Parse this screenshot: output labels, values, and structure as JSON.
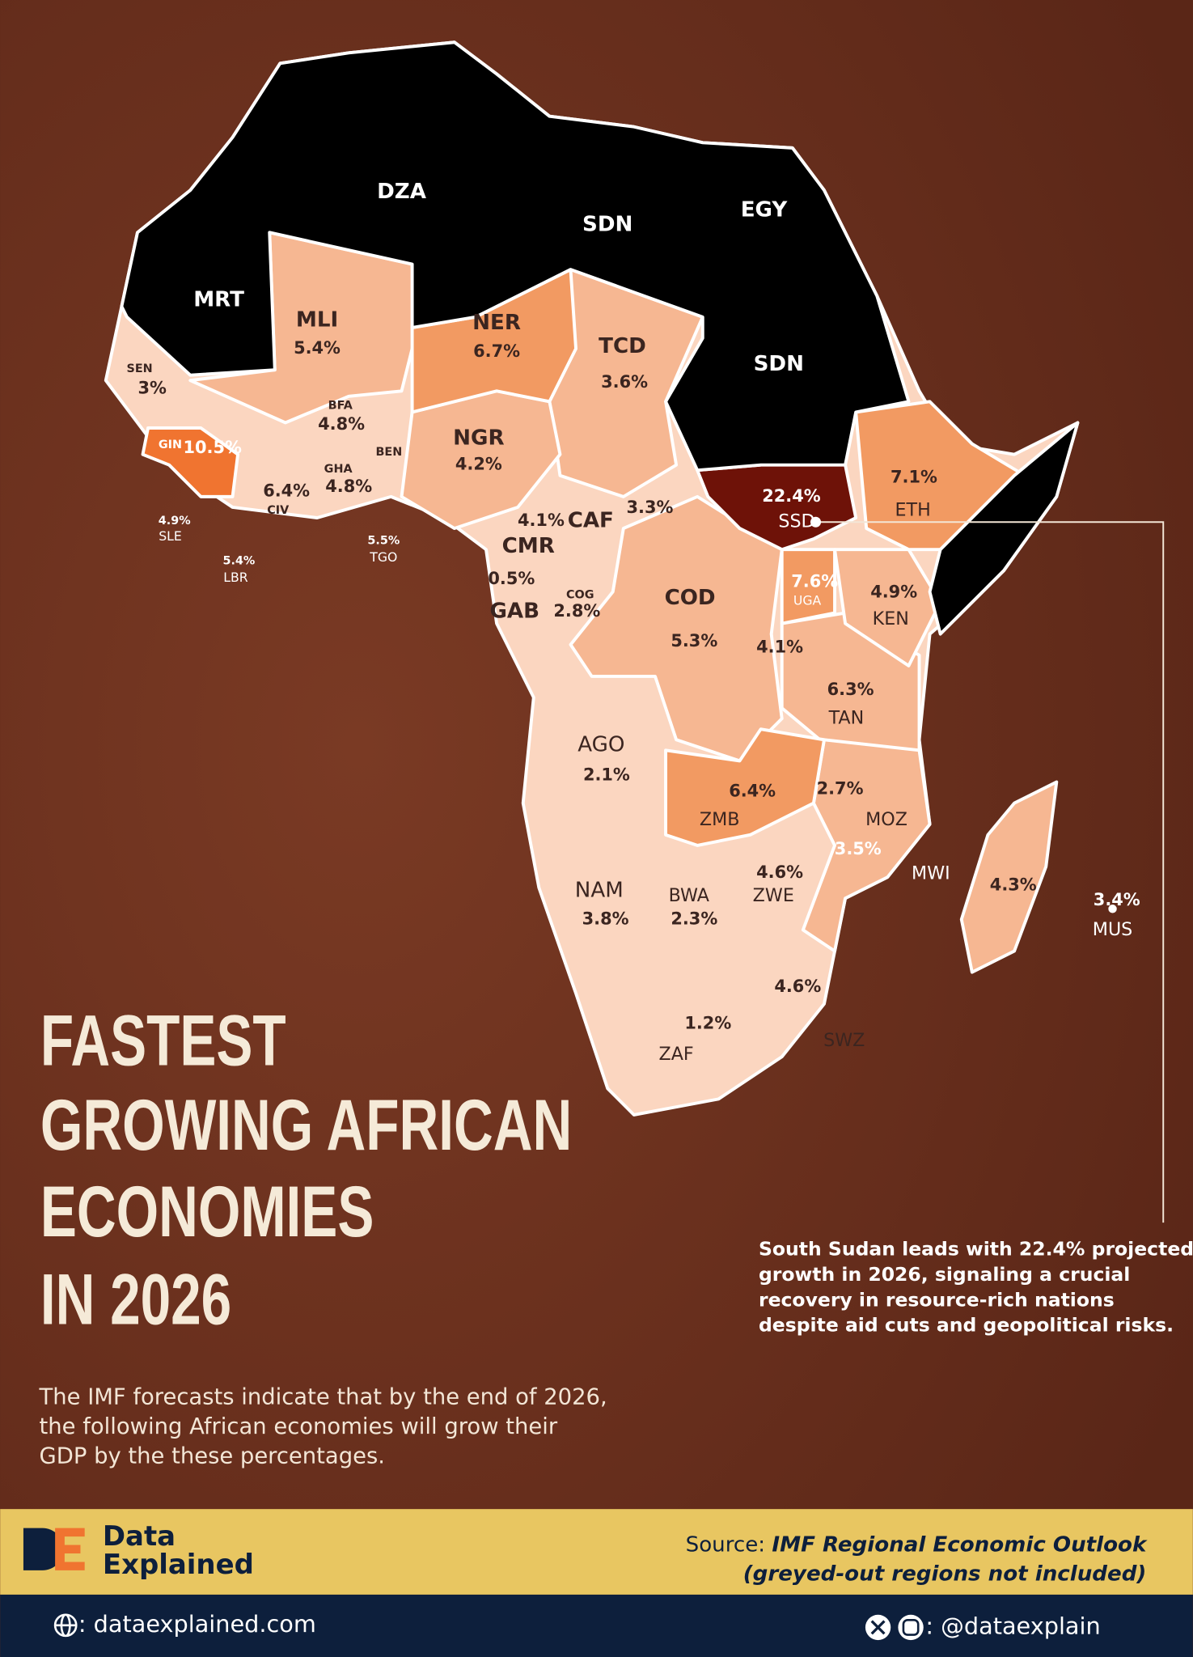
{
  "title": [
    "FASTEST",
    "GROWING AFRICAN",
    "ECONOMIES",
    "IN 2026"
  ],
  "intro": [
    "The IMF forecasts indicate that by the end of 2026,",
    "the following African economies will grow their",
    "GDP by the these percentages."
  ],
  "callout": [
    "South Sudan leads with 22.4% projected",
    "growth in 2026, signaling a crucial",
    "recovery in resource-rich nations",
    "despite aid cuts and geopolitical risks."
  ],
  "countries": [
    {
      "code": "DZA"
    },
    {
      "code": "SDN"
    },
    {
      "code": "EGY"
    },
    {
      "code": "MRT"
    },
    {
      "code": "SDN"
    },
    {
      "code": "MLI",
      "growth": "5.4%"
    },
    {
      "code": "NER",
      "growth": "6.7%"
    },
    {
      "code": "TCD",
      "growth": "3.6%"
    },
    {
      "code": "SEN",
      "growth": "3%"
    },
    {
      "code": "BFA",
      "growth": "4.8%"
    },
    {
      "code": "GIN",
      "growth": "10.5%"
    },
    {
      "code": "NGR",
      "growth": "4.2%"
    },
    {
      "code": "BEN"
    },
    {
      "code": "GHA",
      "growth": "4.8%"
    },
    {
      "code": "CIV",
      "growth": "6.4%"
    },
    {
      "code": "SLE",
      "growth": "4.9%"
    },
    {
      "code": "LBR",
      "growth": "5.4%"
    },
    {
      "code": "TGO",
      "growth": "5.5%"
    },
    {
      "code": "CMR",
      "growth": "4.1%"
    },
    {
      "code": "CAF",
      "growth": "3.3%"
    },
    {
      "code": "GAB",
      "growth": "0.5%"
    },
    {
      "code": "COG",
      "growth": "2.8%"
    },
    {
      "code": "COD",
      "growth": "5.3%"
    },
    {
      "code": "SSD",
      "growth": "22.4%"
    },
    {
      "code": "ETH",
      "growth": "7.1%"
    },
    {
      "code": "UGA",
      "growth": "7.6%"
    },
    {
      "code": "KEN",
      "growth": "4.9%"
    },
    {
      "growth": "4.1%"
    },
    {
      "code": "TAN",
      "growth": "6.3%"
    },
    {
      "code": "AGO",
      "growth": "2.1%"
    },
    {
      "code": "ZMB",
      "growth": "6.4%"
    },
    {
      "code": "MOZ",
      "growth": "2.7%"
    },
    {
      "code": "MWI",
      "growth": "3.5%"
    },
    {
      "code": "ZWE",
      "growth": "4.6%"
    },
    {
      "code": "NAM",
      "growth": "3.8%"
    },
    {
      "code": "BWA",
      "growth": "2.3%"
    },
    {
      "growth": "4.3%"
    },
    {
      "code": "MUS",
      "growth": "3.4%"
    },
    {
      "code": "SWZ",
      "growth": "4.6%"
    },
    {
      "code": "ZAF",
      "growth": "1.2%"
    }
  ],
  "brand": [
    "Data",
    "Explained"
  ],
  "source": {
    "label": "Source:",
    "title": "IMF Regional Economic Outlook",
    "note": "(greyed-out regions not included)"
  },
  "footer": {
    "website": ": dataexplained.com",
    "social": ": @dataexplain"
  }
}
